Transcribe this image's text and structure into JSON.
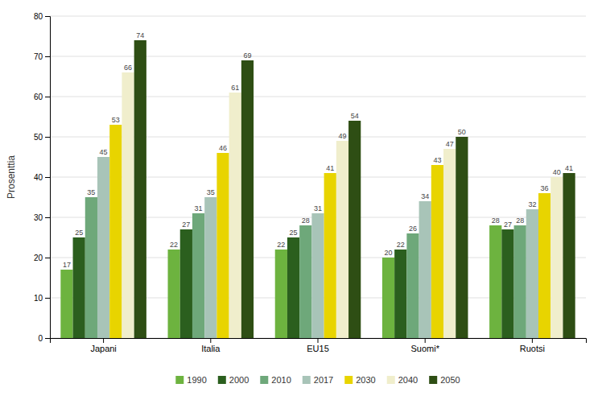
{
  "chart_data": {
    "type": "bar",
    "categories": [
      "Japani",
      "Italia",
      "EU15",
      "Suomi*",
      "Ruotsi"
    ],
    "series": [
      {
        "name": "1990",
        "color": "#6db33f",
        "values": [
          17,
          22,
          22,
          20,
          28
        ]
      },
      {
        "name": "2000",
        "color": "#2b5f1e",
        "values": [
          25,
          27,
          25,
          22,
          27
        ]
      },
      {
        "name": "2010",
        "color": "#6ea87a",
        "values": [
          35,
          31,
          28,
          26,
          28
        ]
      },
      {
        "name": "2017",
        "color": "#a8c4b8",
        "values": [
          45,
          35,
          31,
          34,
          32
        ]
      },
      {
        "name": "2030",
        "color": "#e8d400",
        "values": [
          53,
          46,
          41,
          43,
          36
        ]
      },
      {
        "name": "2040",
        "color": "#f0eecc",
        "values": [
          66,
          61,
          49,
          47,
          40
        ]
      },
      {
        "name": "2050",
        "color": "#2e4e14",
        "values": [
          74,
          69,
          54,
          50,
          41
        ]
      }
    ],
    "ylabel": "Prosenttia",
    "ylim": [
      0,
      80
    ],
    "yticks": [
      0,
      10,
      20,
      30,
      40,
      50,
      60,
      70,
      80
    ],
    "grid": true,
    "data_labels": true,
    "legend": "bottom"
  }
}
